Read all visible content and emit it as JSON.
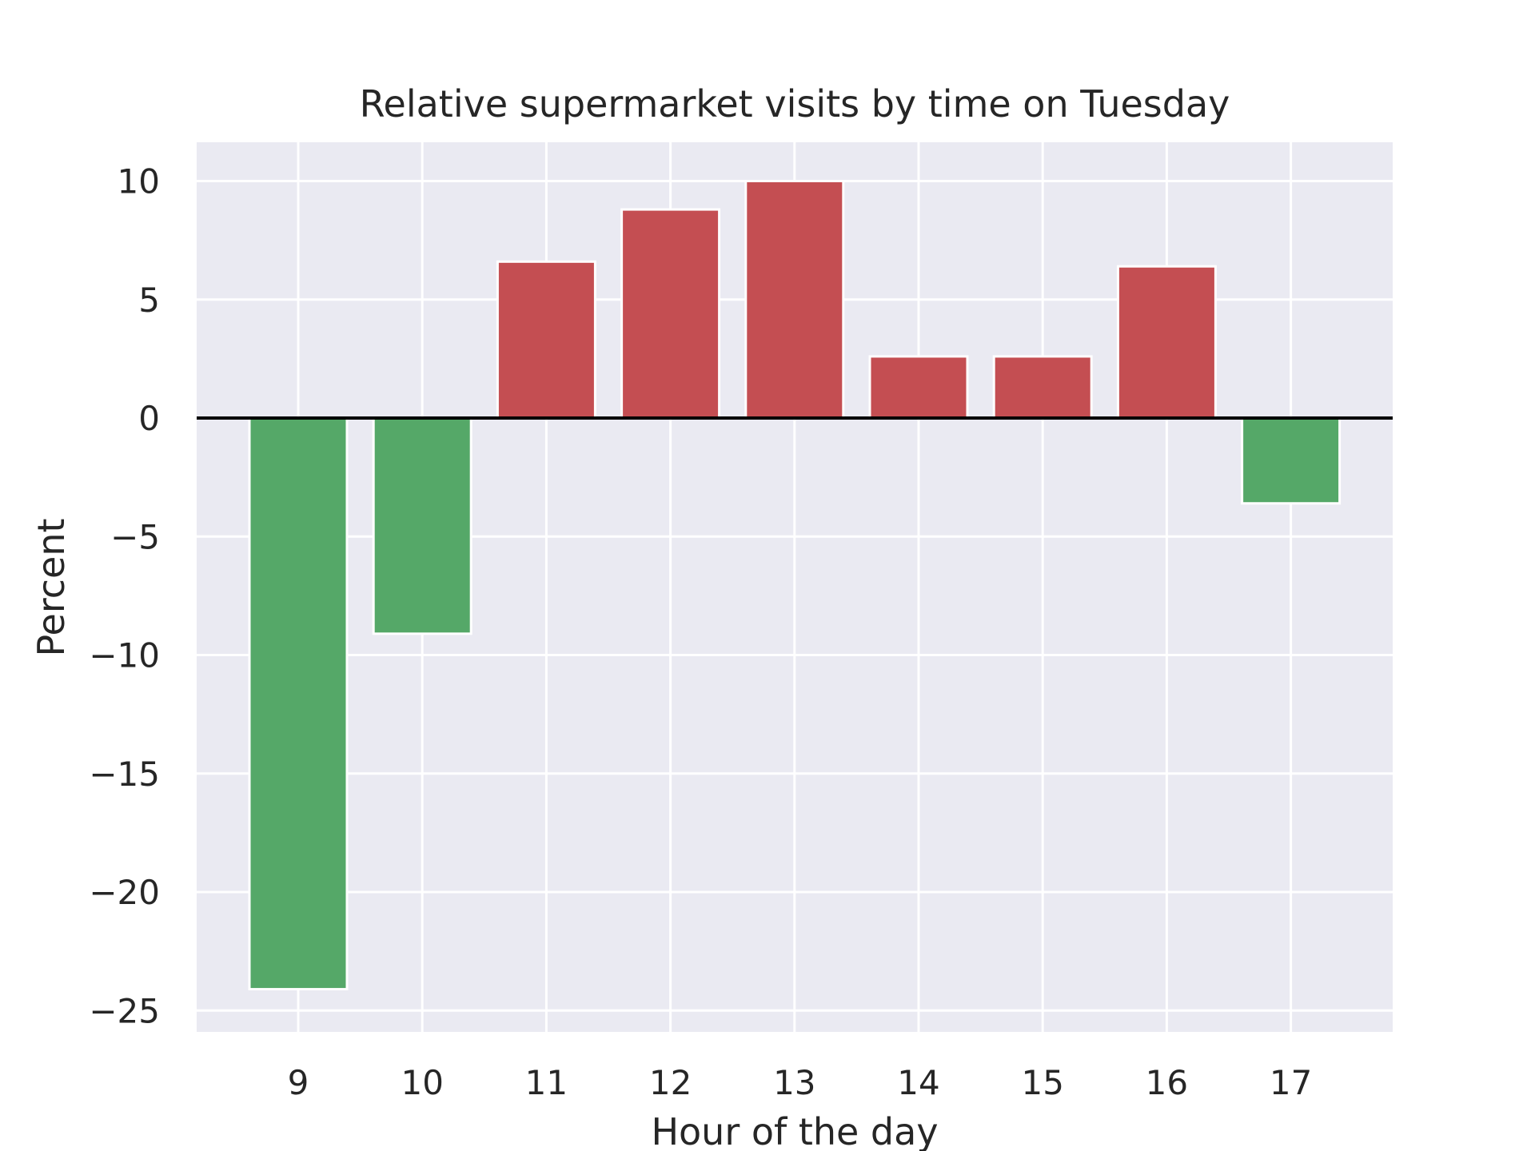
{
  "chart_data": {
    "type": "bar",
    "title": "Relative supermarket visits by time on Tuesday",
    "xlabel": "Hour of the day",
    "ylabel": "Percent",
    "categories": [
      "9",
      "10",
      "11",
      "12",
      "13",
      "14",
      "15",
      "16",
      "17"
    ],
    "values": [
      -24.1,
      -9.1,
      6.6,
      8.8,
      10.0,
      2.6,
      2.6,
      6.4,
      -3.6
    ],
    "ylim": [
      -25.8,
      11.6
    ],
    "yticks": [
      10,
      5,
      0,
      -5,
      -10,
      -15,
      -20,
      -25
    ],
    "ytick_labels": [
      "10",
      "5",
      "0",
      "−5",
      "−10",
      "−15",
      "−20",
      "−25"
    ],
    "grid": true,
    "zero_line": true,
    "colors": {
      "positive": "#c44e52",
      "negative": "#55a868",
      "plot_background": "#eaeaf2",
      "grid": "#ffffff",
      "zero_line": "#000000",
      "text": "#262626"
    }
  }
}
